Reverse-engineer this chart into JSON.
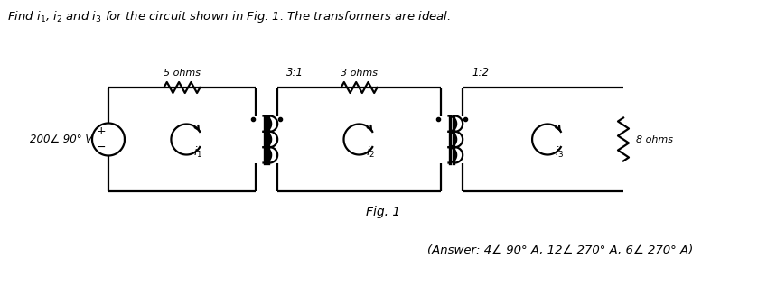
{
  "title_text": "Find $i_1$, $i_2$ and $i_3$ for the circuit shown in Fig. 1. The transformers are ideal.",
  "fig_label": "Fig. 1",
  "answer_text": "(Answer: 4∠ 90° A, 12∠ 270° A, 6∠ 270° A)",
  "source_label": "200∠ 90° V",
  "r1_label": "5 ohms",
  "r2_label": "3 ohms",
  "r3_label": "8 ohms",
  "t1_ratio": "3:1",
  "t2_ratio": "1:2",
  "i1_label": "$i_1$",
  "i2_label": "$i_2$",
  "i3_label": "$i_3$",
  "line_color": "#000000",
  "bg_color": "#ffffff",
  "lw": 1.6
}
